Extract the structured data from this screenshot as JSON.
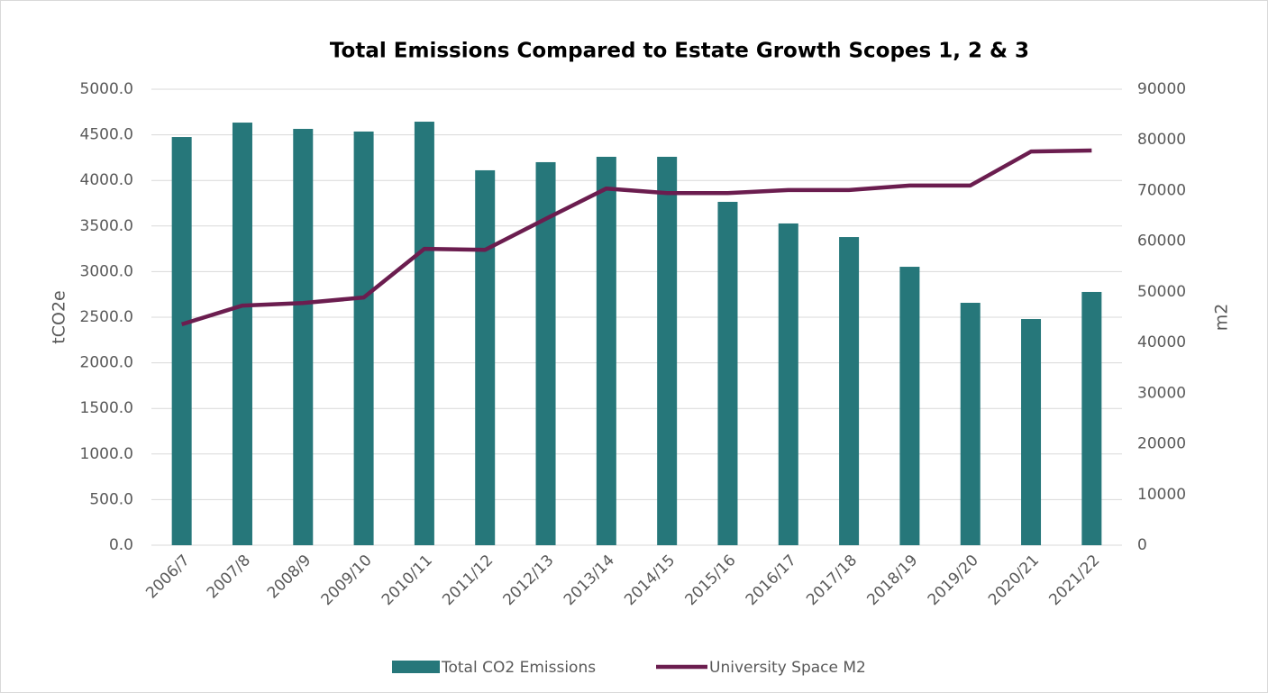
{
  "chart_data": {
    "type": "bar_line",
    "title": "Total Emissions Compared to Estate Growth Scopes 1, 2 & 3",
    "y_label": "tCO2e",
    "y2_label": "m2",
    "categories": [
      "2006/7",
      "2007/8",
      "2008/9",
      "2009/10",
      "2010/11",
      "2011/12",
      "2012/13",
      "2013/14",
      "2014/15",
      "2015/16",
      "2016/17",
      "2017/18",
      "2018/19",
      "2019/20",
      "2020/21",
      "2021/22"
    ],
    "series": [
      {
        "name": "Total CO2 Emissions",
        "type": "bar",
        "color": "#26777a",
        "values": [
          4476,
          4634,
          4565,
          4536,
          4644,
          4111,
          4200,
          4259,
          4259,
          3765,
          3528,
          3379,
          3053,
          2658,
          2480,
          2777
        ]
      },
      {
        "name": "University Space M2",
        "type": "line",
        "axis": "y2",
        "color": "#6b1d4f",
        "values": [
          43600,
          47300,
          47800,
          48900,
          58500,
          58300,
          64400,
          70400,
          69500,
          69500,
          70100,
          70100,
          71000,
          71000,
          77700,
          77900
        ]
      }
    ],
    "ylim": [
      0,
      5000
    ],
    "yticks": [
      {
        "value": 0,
        "label": "0.0"
      },
      {
        "value": 500,
        "label": "500.0"
      },
      {
        "value": 1000,
        "label": "1000.0"
      },
      {
        "value": 1500,
        "label": "1500.0"
      },
      {
        "value": 2000,
        "label": "2000.0"
      },
      {
        "value": 2500,
        "label": "2500.0"
      },
      {
        "value": 3000,
        "label": "3000.0"
      },
      {
        "value": 3500,
        "label": "3500.0"
      },
      {
        "value": 4000,
        "label": "4000.0"
      },
      {
        "value": 4500,
        "label": "4500.0"
      },
      {
        "value": 5000,
        "label": "5000.0"
      }
    ],
    "y2lim": [
      0,
      90000
    ],
    "y2ticks": [
      0,
      10000,
      20000,
      30000,
      40000,
      50000,
      60000,
      70000,
      80000,
      90000
    ],
    "grid": true,
    "legend": "bottom"
  }
}
